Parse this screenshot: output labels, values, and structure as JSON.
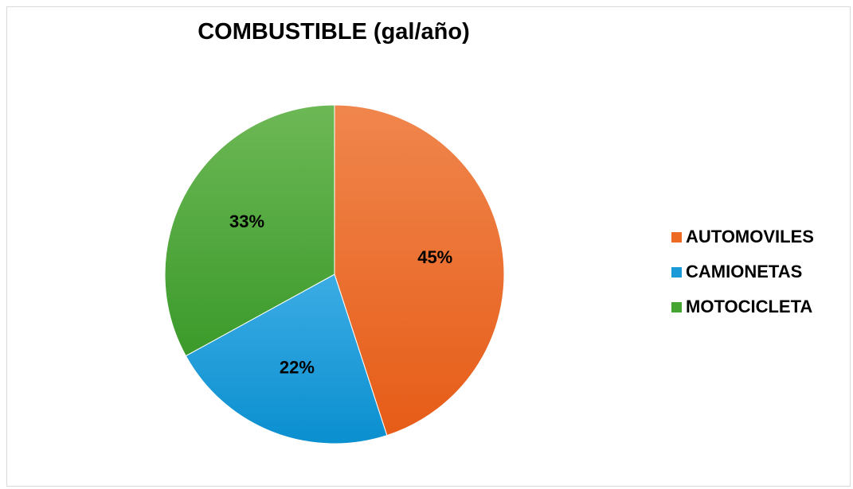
{
  "chart_data": {
    "type": "pie",
    "title": "COMBUSTIBLE (gal/año)",
    "categories": [
      "AUTOMOVILES",
      "CAMIONETAS",
      "MOTOCICLETA"
    ],
    "values": [
      45,
      22,
      33
    ],
    "labels": [
      "45%",
      "22%",
      "33%"
    ],
    "colors": [
      "#ED6A22",
      "#1A9BD8",
      "#46A433"
    ],
    "legend_position": "right",
    "start_angle": "12 o'clock, clockwise"
  }
}
